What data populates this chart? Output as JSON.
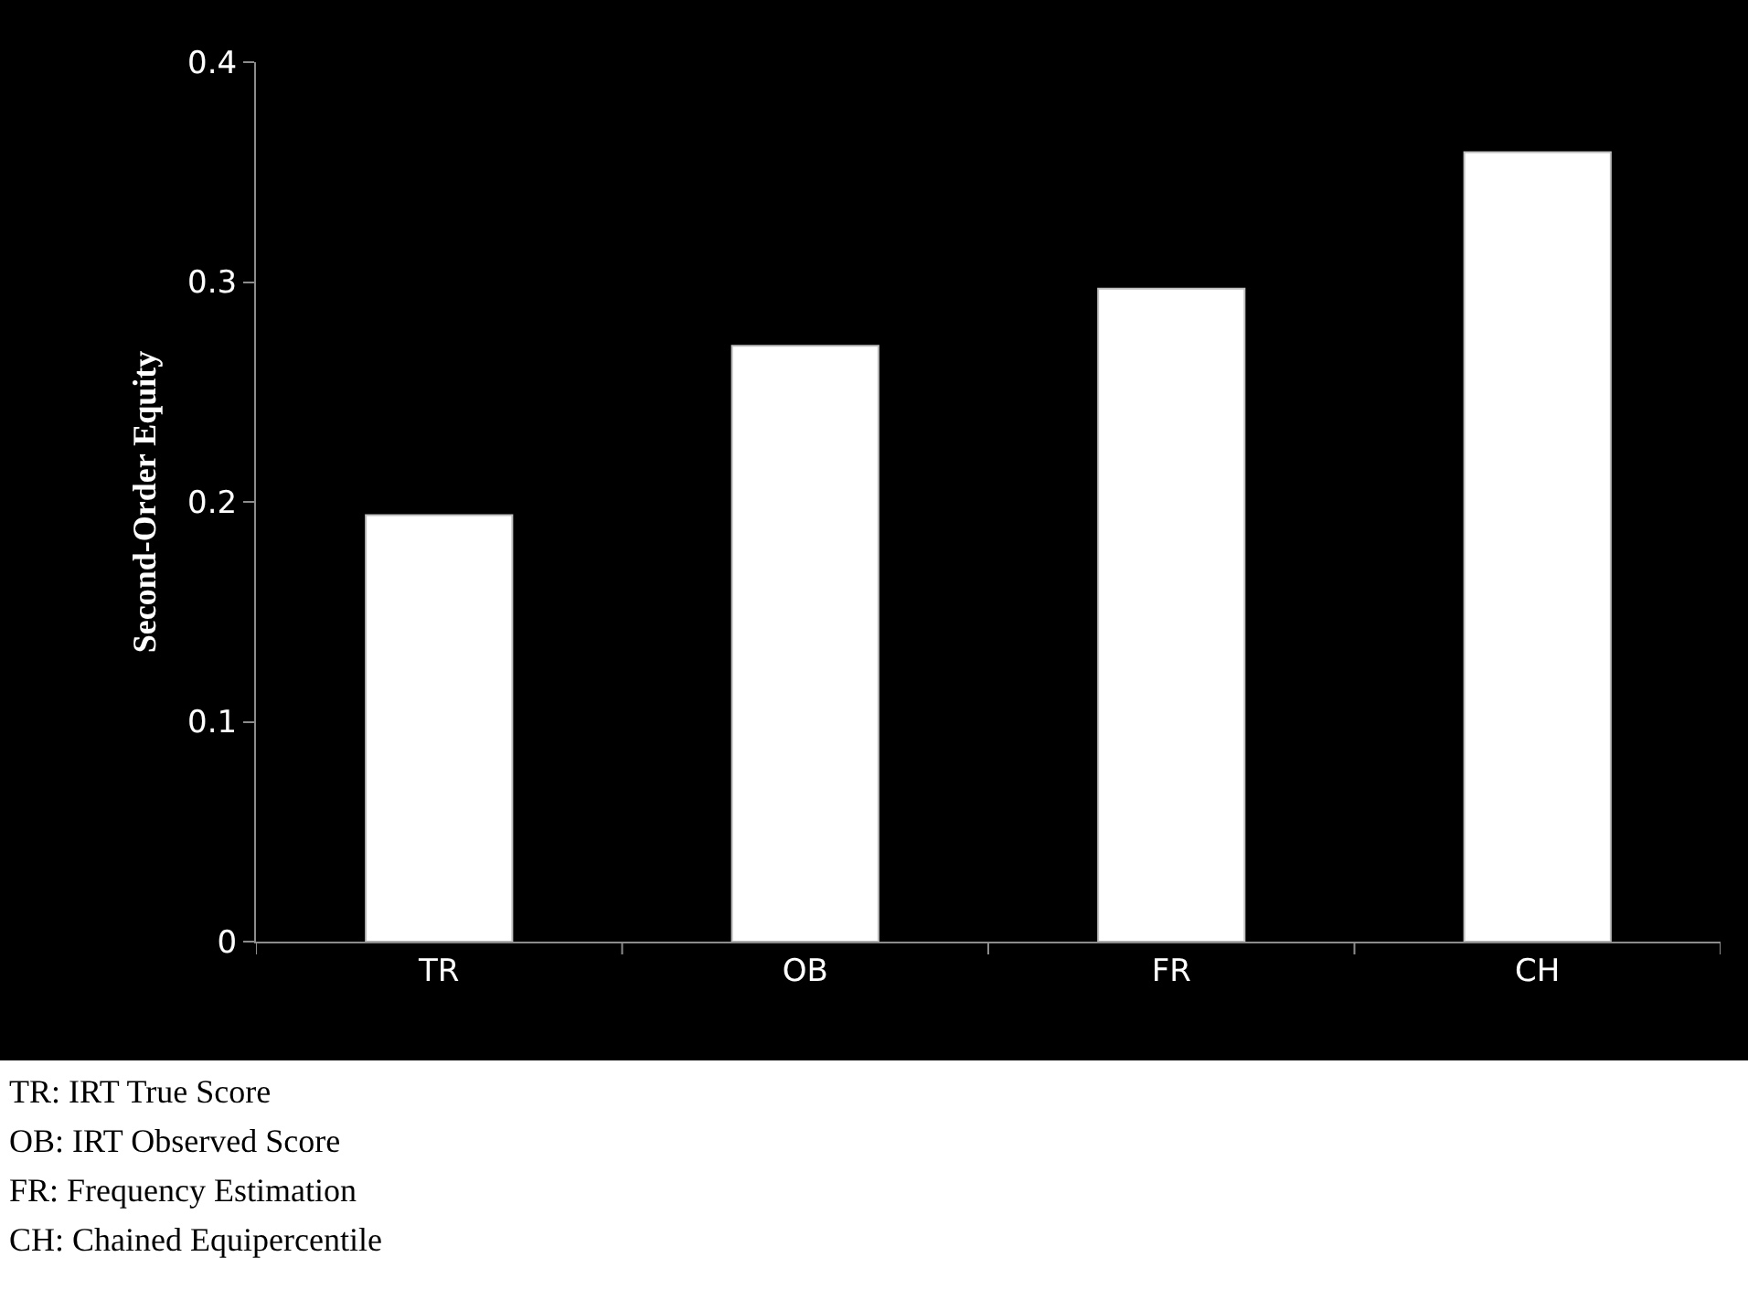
{
  "chart_data": {
    "type": "bar",
    "categories": [
      "TR",
      "OB",
      "FR",
      "CH"
    ],
    "values": [
      0.194,
      0.271,
      0.297,
      0.359
    ],
    "color": "#ffffff",
    "ylabel": "Second-Order Equity",
    "ylim": [
      0,
      0.4
    ],
    "yticks": [
      0,
      0.1,
      0.2,
      0.3,
      0.4
    ],
    "grid": false,
    "legend": false,
    "annotations": [
      "TR: IRT True Score",
      "OB: IRT Observed Score",
      "FR: Frequency Estimation",
      "CH: Chained Equipercentile"
    ]
  }
}
